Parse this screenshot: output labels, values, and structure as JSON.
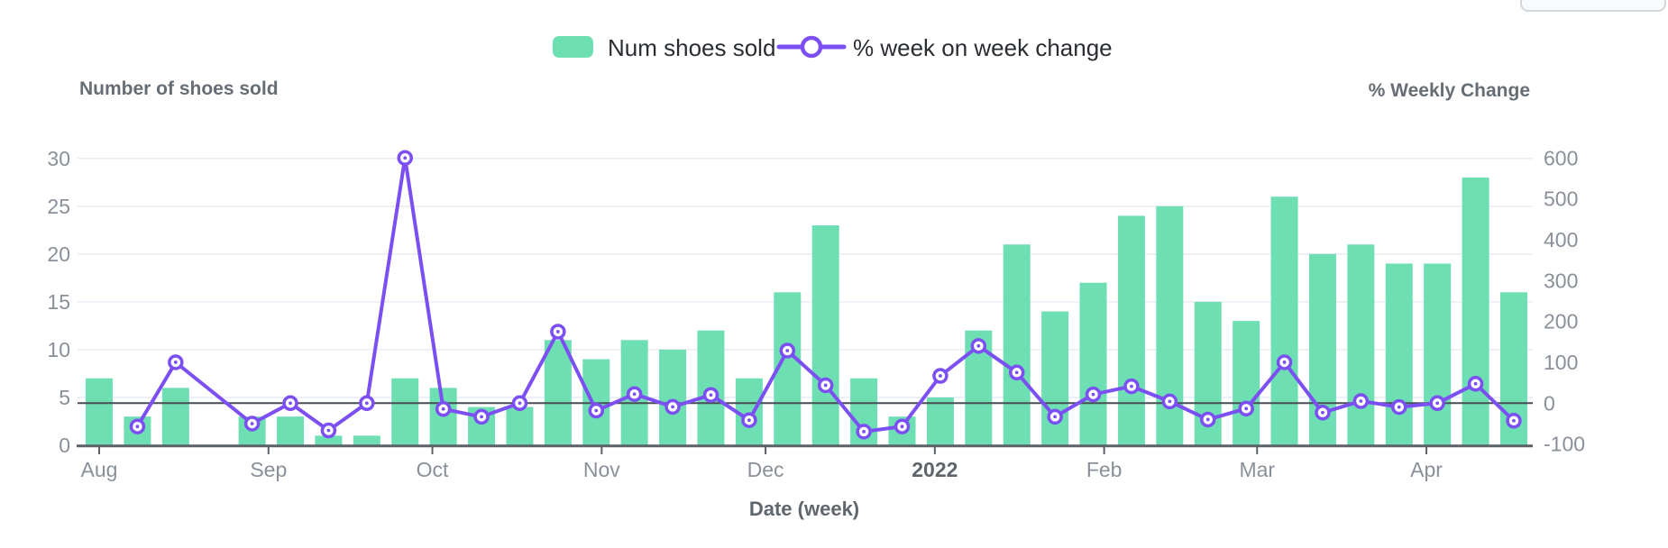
{
  "legend": {
    "bar": {
      "label": "Num shoes sold",
      "color": "#6DDFB3"
    },
    "line": {
      "label": "% week on week change",
      "color": "#7B4FF2"
    }
  },
  "left_axis": {
    "title": "Number of shoes sold",
    "ticks": [
      0,
      5,
      10,
      15,
      20,
      25,
      30
    ],
    "range": [
      0,
      30
    ]
  },
  "right_axis": {
    "title": "% Weekly Change",
    "ticks": [
      -100,
      0,
      100,
      200,
      300,
      400,
      500,
      600
    ],
    "range": [
      -100,
      600
    ]
  },
  "x_axis": {
    "title": "Date (week)",
    "month_ticks": [
      {
        "label": "Aug",
        "day": 0,
        "bold": false
      },
      {
        "label": "Sep",
        "day": 31,
        "bold": false
      },
      {
        "label": "Oct",
        "day": 61,
        "bold": false
      },
      {
        "label": "Nov",
        "day": 92,
        "bold": false
      },
      {
        "label": "Dec",
        "day": 122,
        "bold": false
      },
      {
        "label": "2022",
        "day": 153,
        "bold": true
      },
      {
        "label": "Feb",
        "day": 184,
        "bold": false
      },
      {
        "label": "Mar",
        "day": 212,
        "bold": false
      },
      {
        "label": "Apr",
        "day": 243,
        "bold": false
      }
    ]
  },
  "chart_data": {
    "type": "combo",
    "x_unit": "week",
    "num_weeks": 38,
    "grid": "horizontal",
    "legend_position": "top-center",
    "series": [
      {
        "name": "Num shoes sold",
        "type": "bar",
        "axis": "left",
        "values": [
          7,
          3,
          6,
          null,
          3,
          3,
          1,
          1,
          7,
          6,
          4,
          4,
          11,
          9,
          11,
          10,
          12,
          7,
          16,
          23,
          7,
          3,
          5,
          12,
          21,
          14,
          17,
          24,
          25,
          15,
          13,
          26,
          20,
          21,
          19,
          19,
          28,
          16
        ]
      },
      {
        "name": "% week on week change",
        "type": "line",
        "axis": "right",
        "marker": "open-circle-dot",
        "values": [
          null,
          -57.1,
          100,
          null,
          -50,
          0,
          -66.7,
          0,
          600,
          -14.3,
          -33.3,
          0,
          175,
          -18.2,
          22.2,
          -9.1,
          20,
          -41.7,
          128.6,
          43.8,
          -69.6,
          -57.1,
          66.7,
          140,
          75,
          -33.3,
          21.4,
          41.2,
          4.2,
          -40,
          -13.3,
          100,
          -23.1,
          5,
          -9.5,
          0,
          47.4,
          -42.9
        ]
      }
    ]
  },
  "colors": {
    "bar": "#6DDFB3",
    "line": "#7B4FF2",
    "grid": "#e9ebf5",
    "zero_line": "#474d53",
    "axis_line": "#5b6167",
    "tick_text": "#8a9099",
    "title_text": "#676d74"
  }
}
